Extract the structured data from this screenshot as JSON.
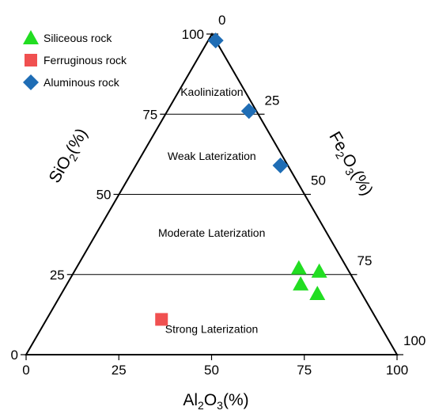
{
  "chart_data": {
    "type": "scatter",
    "subtype": "ternary",
    "axes": {
      "sio2": {
        "label": "SiO",
        "sub": "2",
        "suffix": "(%)",
        "ticks": [
          "0",
          "25",
          "50",
          "75",
          "100"
        ]
      },
      "al2o3": {
        "label": "Al",
        "sub1": "2",
        "mid": "O",
        "sub2": "3",
        "suffix": "(%)",
        "ticks": [
          "100",
          "75",
          "50",
          "25",
          "0"
        ]
      },
      "fe2o3": {
        "label": "Fe",
        "sub1": "2",
        "mid": "O",
        "sub2": "3",
        "suffix": "(%)",
        "ticks": [
          "0",
          "25",
          "50",
          "75",
          "100"
        ]
      }
    },
    "tick_values": [
      0,
      25,
      50,
      75,
      100
    ],
    "boundaries_sio2": [
      75,
      50,
      25
    ],
    "regions": [
      {
        "label": "Kaolinization",
        "sio2": 82
      },
      {
        "label": "Weak Laterization",
        "sio2": 62
      },
      {
        "label": "Moderate Laterization",
        "sio2": 38
      },
      {
        "label": "Strong Laterization",
        "sio2": 8
      }
    ],
    "legend": {
      "position": "top-left"
    },
    "series": [
      {
        "name": "Siliceous rock",
        "marker": "triangle",
        "color": "#22dd22",
        "points": [
          {
            "sio2": 27,
            "fe2o3": 60,
            "al2o3": 13
          },
          {
            "sio2": 22,
            "fe2o3": 63,
            "al2o3": 15
          },
          {
            "sio2": 19,
            "fe2o3": 69,
            "al2o3": 12
          },
          {
            "sio2": 26,
            "fe2o3": 66,
            "al2o3": 8
          }
        ]
      },
      {
        "name": "Ferruginous rock",
        "marker": "square",
        "color": "#f05050",
        "points": [
          {
            "sio2": 11,
            "fe2o3": 31,
            "al2o3": 58
          }
        ]
      },
      {
        "name": "Aluminous rock",
        "marker": "diamond",
        "color": "#1f6db5",
        "points": [
          {
            "sio2": 98,
            "fe2o3": 2,
            "al2o3": 0
          },
          {
            "sio2": 76,
            "fe2o3": 22,
            "al2o3": 2
          },
          {
            "sio2": 59,
            "fe2o3": 39,
            "al2o3": 2
          }
        ]
      }
    ]
  }
}
